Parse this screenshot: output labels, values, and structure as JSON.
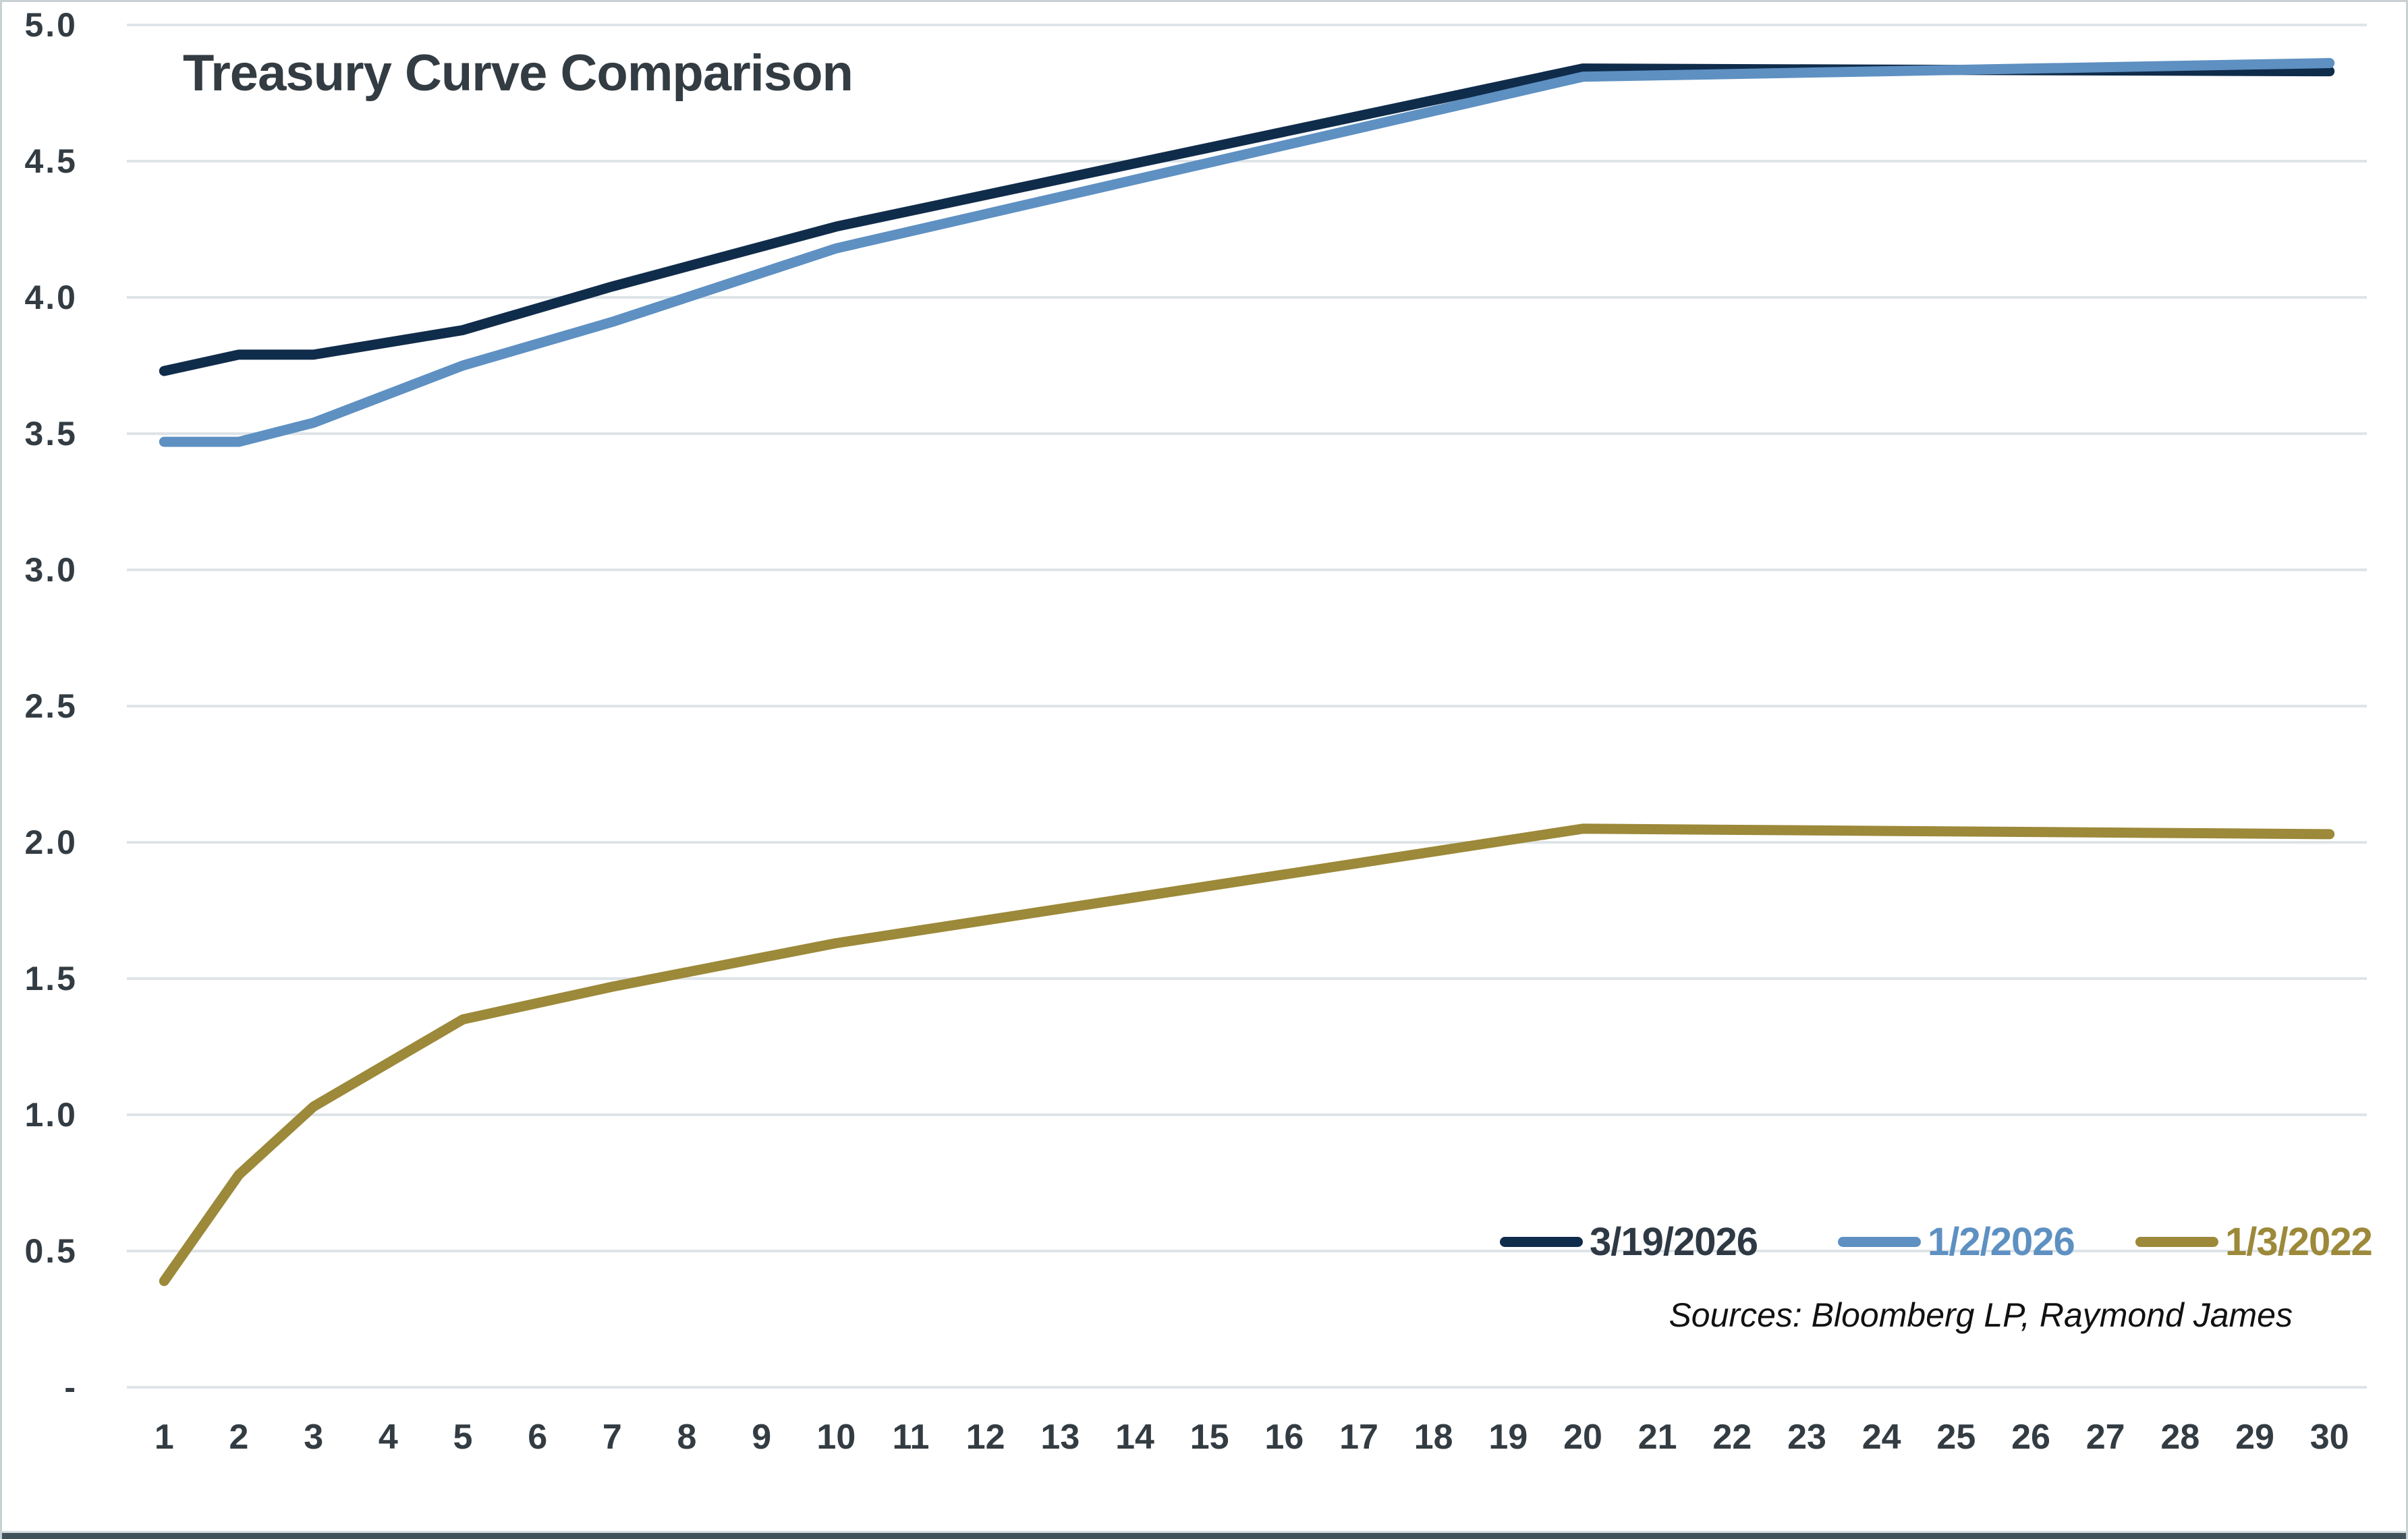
{
  "page": {
    "title": "Treasury Curve Comparison",
    "sources_note": "Sources: Bloomberg LP, Raymond James"
  },
  "colors": {
    "text": "#333c42",
    "gridline": "#dee4e8",
    "background": "#ffffff",
    "frame_bottom": "#42525a",
    "frame_light": "#c9d1d5",
    "sources_text": "#111111"
  },
  "chart_data": {
    "type": "line",
    "title": "Treasury Curve Comparison",
    "sources": "Sources: Bloomberg LP, Raymond James",
    "grid": "horizontal",
    "legend_position": "inside-bottom-right",
    "xlabel": "",
    "ylabel": "",
    "x_range": [
      1,
      30
    ],
    "ylim": [
      0,
      5
    ],
    "x_tick_labels": [
      "1",
      "2",
      "3",
      "4",
      "5",
      "6",
      "7",
      "8",
      "9",
      "10",
      "11",
      "12",
      "13",
      "14",
      "15",
      "16",
      "17",
      "18",
      "19",
      "20",
      "21",
      "22",
      "23",
      "24",
      "25",
      "26",
      "27",
      "28",
      "29",
      "30"
    ],
    "y_ticks": [
      {
        "value": 5.0,
        "label": "5.0"
      },
      {
        "value": 4.5,
        "label": "4.5"
      },
      {
        "value": 4.0,
        "label": "4.0"
      },
      {
        "value": 3.5,
        "label": "3.5"
      },
      {
        "value": 3.0,
        "label": "3.0"
      },
      {
        "value": 2.5,
        "label": "2.5"
      },
      {
        "value": 2.0,
        "label": "2.0"
      },
      {
        "value": 1.5,
        "label": "1.5"
      },
      {
        "value": 1.0,
        "label": "1.0"
      },
      {
        "value": 0.5,
        "label": "0.5"
      },
      {
        "value": 0.0,
        "label": "-"
      }
    ],
    "maturities": [
      1,
      2,
      3,
      5,
      7,
      10,
      20,
      30
    ],
    "series": [
      {
        "name": "3/19/2026",
        "color": "#102c4b",
        "legend_text_color": "#2e3944",
        "values": [
          3.73,
          3.79,
          3.79,
          3.88,
          4.04,
          4.26,
          4.84,
          4.83
        ]
      },
      {
        "name": "1/2/2026",
        "color": "#5e90c2",
        "legend_text_color": "#5e90c2",
        "values": [
          3.47,
          3.47,
          3.54,
          3.75,
          3.91,
          4.18,
          4.81,
          4.86
        ]
      },
      {
        "name": "1/3/2022",
        "color": "#9c8939",
        "legend_text_color": "#9c8939",
        "values": [
          0.39,
          0.78,
          1.03,
          1.35,
          1.47,
          1.63,
          2.05,
          2.03
        ]
      }
    ]
  }
}
